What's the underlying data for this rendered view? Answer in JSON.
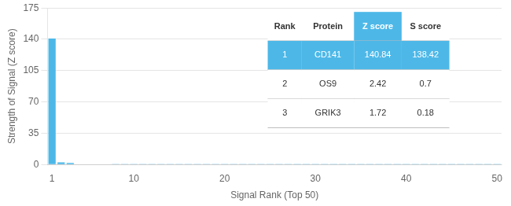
{
  "chart_data": {
    "type": "bar",
    "x": [
      1,
      2,
      3,
      4,
      5,
      6,
      7,
      8,
      9,
      10,
      11,
      12,
      13,
      14,
      15,
      16,
      17,
      18,
      19,
      20,
      21,
      22,
      23,
      24,
      25,
      26,
      27,
      28,
      29,
      30,
      31,
      32,
      33,
      34,
      35,
      36,
      37,
      38,
      39,
      40,
      41,
      42,
      43,
      44,
      45,
      46,
      47,
      48,
      49,
      50
    ],
    "values": [
      140.84,
      2.42,
      1.72,
      0.5,
      0.4,
      0.35,
      0.3,
      0.28,
      0.25,
      0.22,
      0.2,
      0.18,
      0.17,
      0.16,
      0.15,
      0.14,
      0.13,
      0.12,
      0.11,
      0.1,
      0.09,
      0.09,
      0.08,
      0.08,
      0.07,
      0.07,
      0.07,
      0.06,
      0.06,
      0.06,
      0.05,
      0.05,
      0.05,
      0.05,
      0.04,
      0.04,
      0.04,
      0.04,
      0.03,
      0.03,
      0.03,
      0.03,
      0.03,
      0.02,
      0.02,
      0.02,
      0.02,
      0.02,
      0.01,
      0.01
    ],
    "color": "#4db8e8",
    "x_label": "Signal Rank (Top 50)",
    "y_label": "Strength of Signal (Z score)",
    "xlim": [
      0.5,
      50.5
    ],
    "xticks": [
      1,
      10,
      20,
      30,
      40,
      50
    ],
    "ylim": [
      0,
      175
    ],
    "yticks": [
      0,
      35,
      70,
      105,
      140,
      175
    ],
    "grid": true,
    "table": {
      "headers": [
        "Rank",
        "Protein",
        "Z score",
        "S score"
      ],
      "rows": [
        [
          "1",
          "CD141",
          "140.84",
          "138.42"
        ],
        [
          "2",
          "OS9",
          "2.42",
          "0.7"
        ],
        [
          "3",
          "GRIK3",
          "1.72",
          "0.18"
        ]
      ]
    }
  }
}
